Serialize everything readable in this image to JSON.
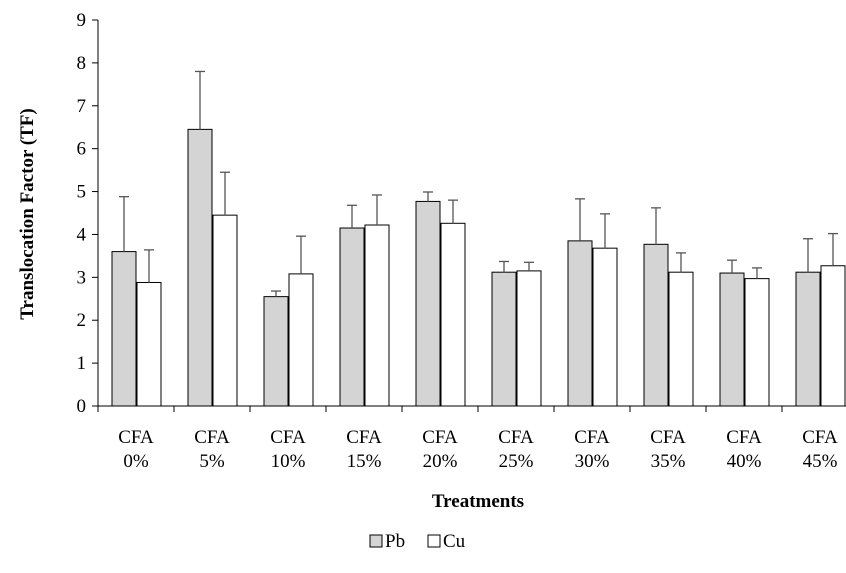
{
  "chart_data": {
    "type": "bar",
    "categories": [
      [
        "CFA",
        "0%"
      ],
      [
        "CFA",
        "5%"
      ],
      [
        "CFA",
        "10%"
      ],
      [
        "CFA",
        "15%"
      ],
      [
        "CFA",
        "20%"
      ],
      [
        "CFA",
        "25%"
      ],
      [
        "CFA",
        "30%"
      ],
      [
        "CFA",
        "35%"
      ],
      [
        "CFA",
        "40%"
      ],
      [
        "CFA",
        "45%"
      ]
    ],
    "series": [
      {
        "name": "Pb",
        "color": "#d4d4d4",
        "values": [
          3.6,
          6.45,
          2.55,
          4.15,
          4.77,
          3.12,
          3.85,
          3.77,
          3.1,
          3.12
        ],
        "errors": [
          1.28,
          1.35,
          0.13,
          0.53,
          0.22,
          0.25,
          0.98,
          0.85,
          0.3,
          0.78
        ]
      },
      {
        "name": "Cu",
        "color": "#ffffff",
        "values": [
          2.88,
          4.45,
          3.08,
          4.22,
          4.26,
          3.15,
          3.68,
          3.12,
          2.97,
          3.27
        ],
        "errors": [
          0.76,
          1.0,
          0.88,
          0.7,
          0.54,
          0.2,
          0.8,
          0.45,
          0.25,
          0.75
        ]
      }
    ],
    "title": "",
    "xlabel": "Treatments",
    "ylabel": "Translocation Factor (TF)",
    "ylim": [
      0,
      9
    ],
    "yticks": [
      0,
      1,
      2,
      3,
      4,
      5,
      6,
      7,
      8,
      9
    ],
    "grid": false,
    "legend_position": "bottom-center"
  }
}
